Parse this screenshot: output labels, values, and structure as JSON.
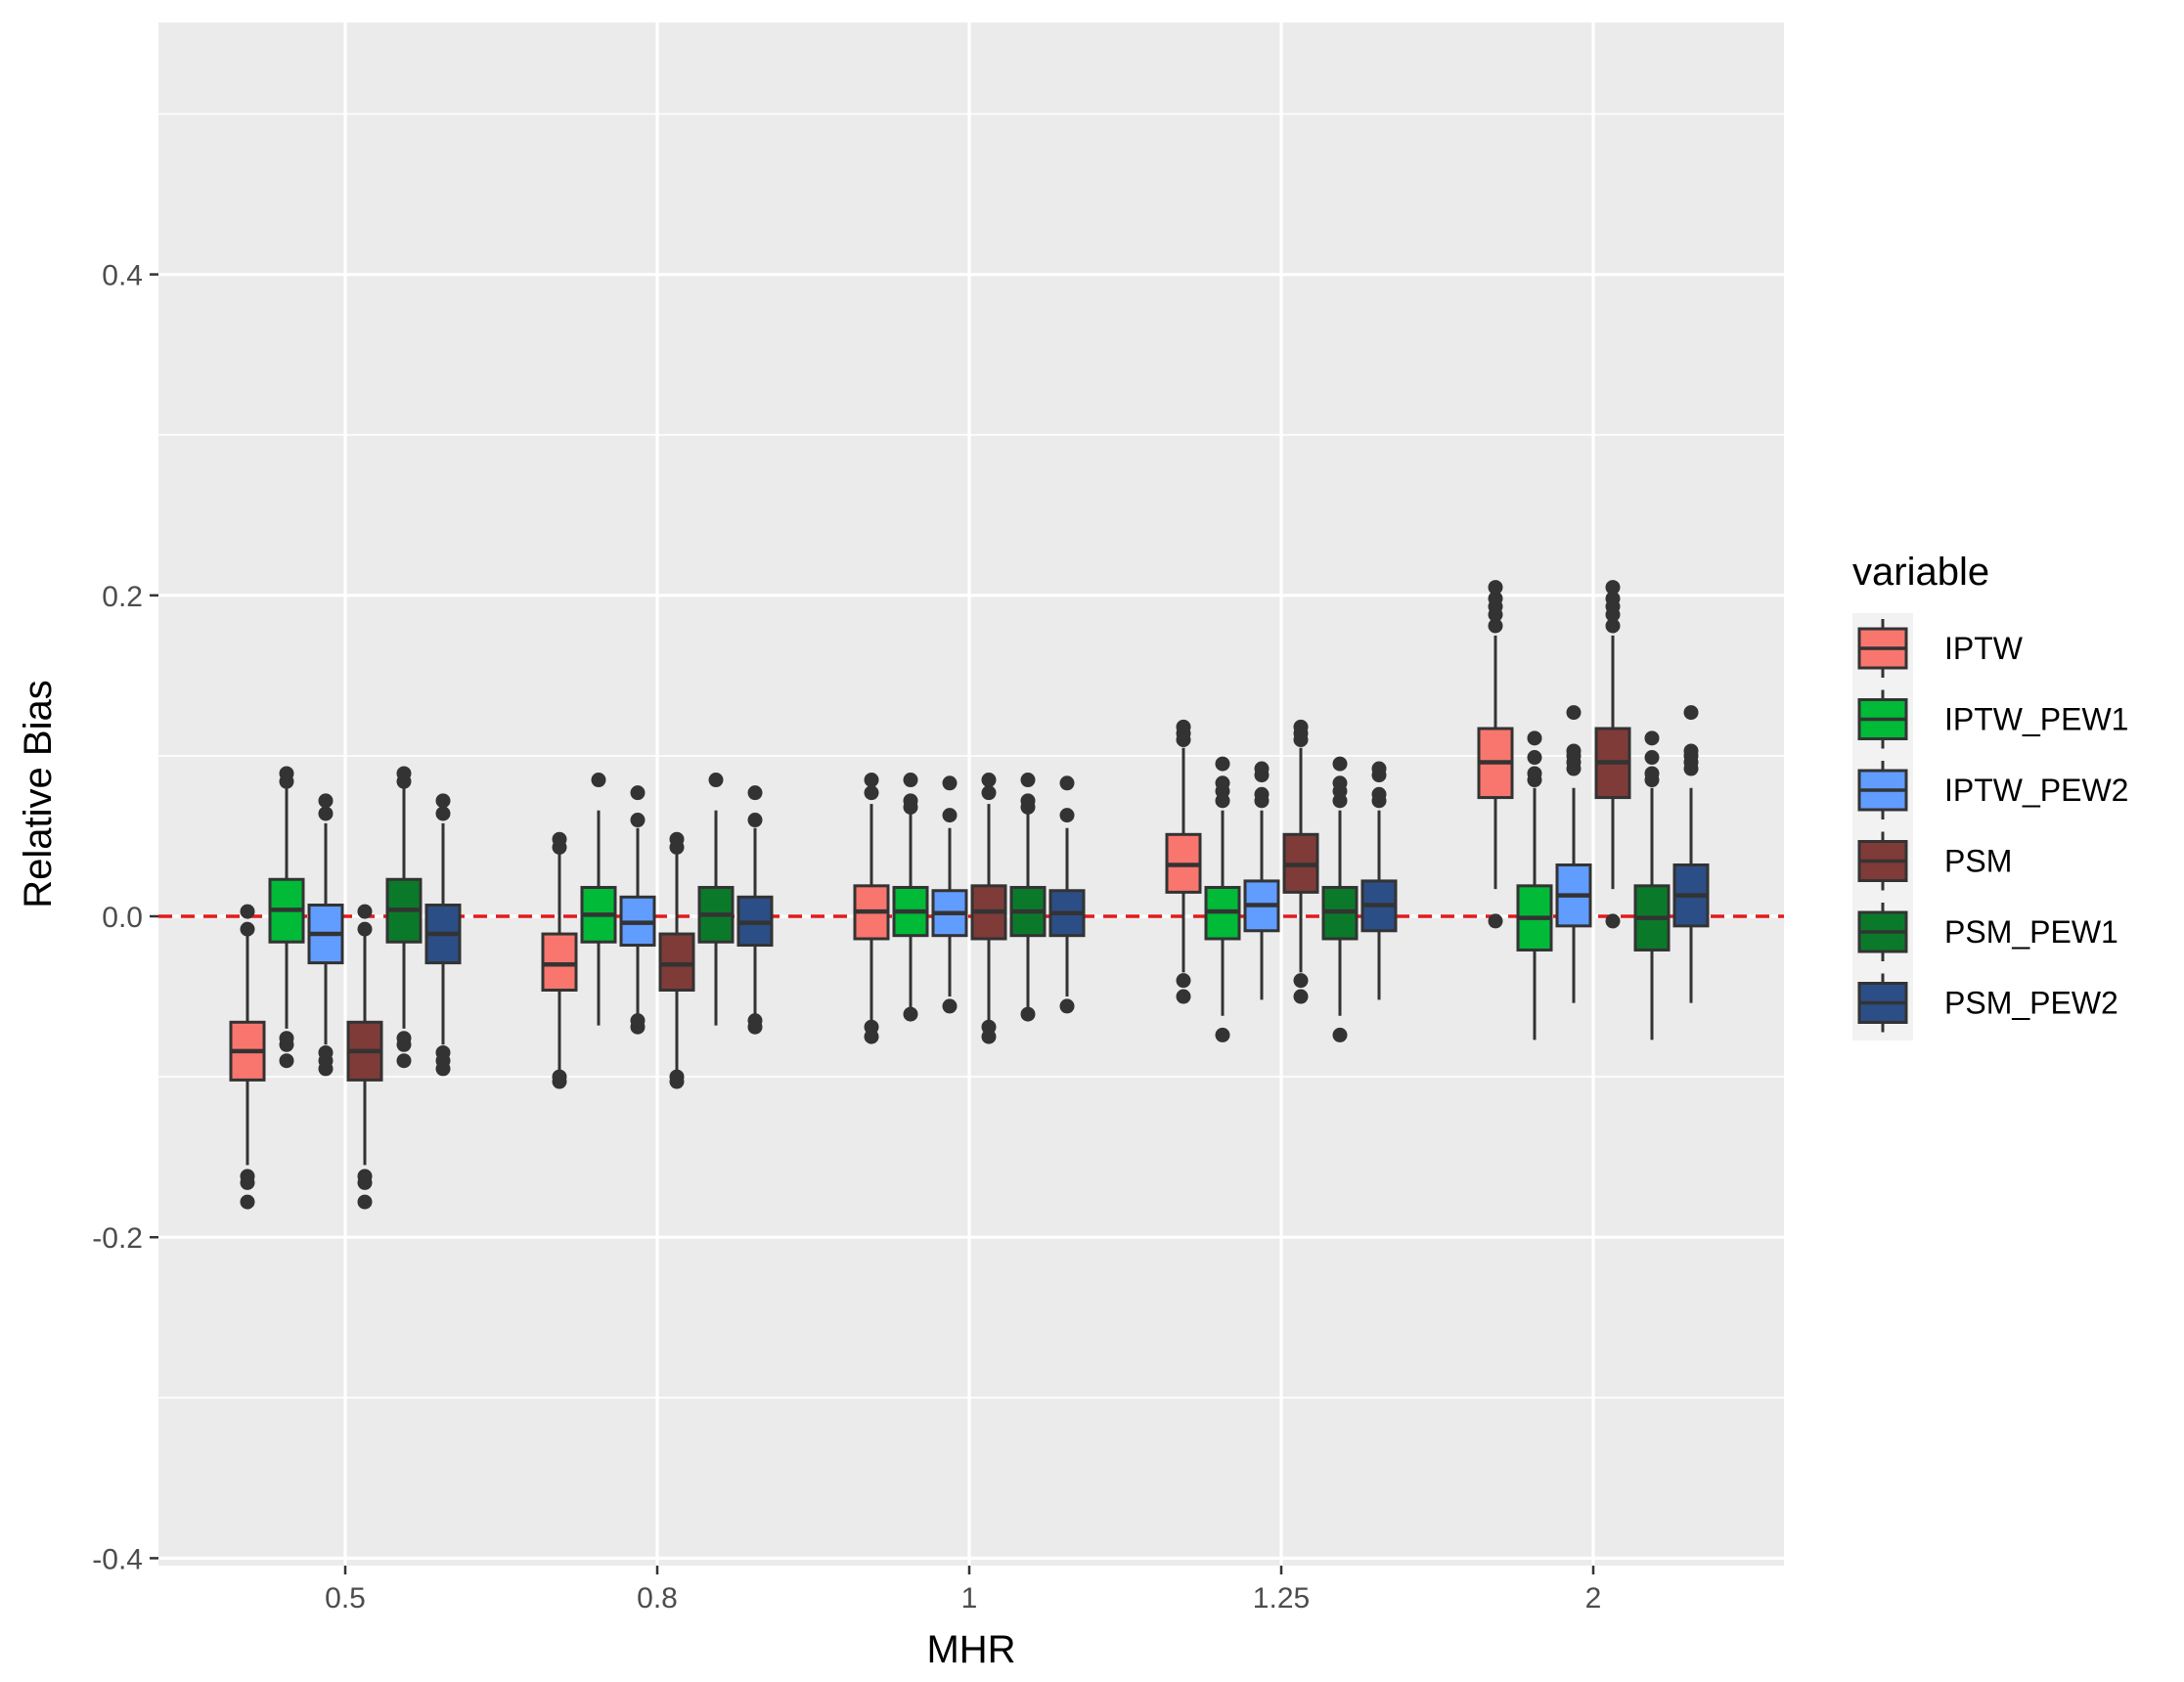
{
  "chart_data": {
    "type": "boxplot",
    "title": "",
    "xlabel": "MHR",
    "ylabel": "Relative Bias",
    "categories": [
      "0.5",
      "0.8",
      "1",
      "1.25",
      "2"
    ],
    "ylim": [
      -0.4,
      0.5
    ],
    "yticks": [
      "0.4",
      "0.2",
      "0.0",
      "-0.2",
      "-0.4"
    ],
    "ytick_values": [
      0.4,
      0.2,
      0.0,
      -0.2,
      -0.4
    ],
    "grid": true,
    "reference_line": {
      "y": 0.0,
      "color": "#e31a1c",
      "style": "dashed"
    },
    "legend": {
      "title": "variable",
      "position": "right"
    },
    "series": [
      {
        "name": "IPTW",
        "color": "#F8766D",
        "boxes": [
          {
            "category": "0.5",
            "lower_whisker": -0.155,
            "q1": -0.102,
            "median": -0.084,
            "q3": -0.066,
            "upper_whisker": -0.012,
            "outliers": [
              -0.178,
              -0.166,
              -0.162,
              -0.008,
              0.003
            ]
          },
          {
            "category": "0.8",
            "lower_whisker": -0.097,
            "q1": -0.046,
            "median": -0.03,
            "q3": -0.011,
            "upper_whisker": 0.04,
            "outliers": [
              -0.103,
              -0.1,
              0.043,
              0.048
            ]
          },
          {
            "category": "1",
            "lower_whisker": -0.065,
            "q1": -0.014,
            "median": 0.003,
            "q3": 0.019,
            "upper_whisker": 0.07,
            "outliers": [
              -0.075,
              -0.069,
              0.077,
              0.085
            ]
          },
          {
            "category": "1.25",
            "lower_whisker": -0.035,
            "q1": 0.015,
            "median": 0.032,
            "q3": 0.051,
            "upper_whisker": 0.105,
            "outliers": [
              -0.05,
              -0.04,
              0.11,
              0.114,
              0.118
            ]
          },
          {
            "category": "2",
            "lower_whisker": 0.017,
            "q1": 0.074,
            "median": 0.096,
            "q3": 0.117,
            "upper_whisker": 0.175,
            "outliers": [
              -0.003,
              0.181,
              0.188,
              0.193,
              0.198,
              0.205
            ]
          }
        ]
      },
      {
        "name": "IPTW_PEW1",
        "color": "#00BA38",
        "boxes": [
          {
            "category": "0.5",
            "lower_whisker": -0.07,
            "q1": -0.016,
            "median": 0.004,
            "q3": 0.023,
            "upper_whisker": 0.08,
            "outliers": [
              -0.09,
              -0.08,
              -0.076,
              0.084,
              0.089
            ]
          },
          {
            "category": "0.8",
            "lower_whisker": -0.068,
            "q1": -0.016,
            "median": 0.001,
            "q3": 0.018,
            "upper_whisker": 0.066,
            "outliers": [
              0.085
            ]
          },
          {
            "category": "1",
            "lower_whisker": -0.06,
            "q1": -0.012,
            "median": 0.003,
            "q3": 0.018,
            "upper_whisker": 0.066,
            "outliers": [
              -0.061,
              0.068,
              0.072,
              0.085
            ]
          },
          {
            "category": "1.25",
            "lower_whisker": -0.062,
            "q1": -0.014,
            "median": 0.003,
            "q3": 0.018,
            "upper_whisker": 0.066,
            "outliers": [
              -0.074,
              0.072,
              0.078,
              0.083,
              0.095
            ]
          },
          {
            "category": "2",
            "lower_whisker": -0.077,
            "q1": -0.021,
            "median": -0.001,
            "q3": 0.019,
            "upper_whisker": 0.08,
            "outliers": [
              0.085,
              0.089,
              0.099,
              0.111
            ]
          }
        ]
      },
      {
        "name": "IPTW_PEW2",
        "color": "#619CFF",
        "boxes": [
          {
            "category": "0.5",
            "lower_whisker": -0.08,
            "q1": -0.029,
            "median": -0.011,
            "q3": 0.007,
            "upper_whisker": 0.058,
            "outliers": [
              -0.095,
              -0.09,
              -0.085,
              0.064,
              0.072
            ]
          },
          {
            "category": "0.8",
            "lower_whisker": -0.062,
            "q1": -0.018,
            "median": -0.004,
            "q3": 0.012,
            "upper_whisker": 0.055,
            "outliers": [
              -0.069,
              -0.065,
              0.06,
              0.077
            ]
          },
          {
            "category": "1",
            "lower_whisker": -0.05,
            "q1": -0.012,
            "median": 0.002,
            "q3": 0.016,
            "upper_whisker": 0.055,
            "outliers": [
              -0.056,
              0.063,
              0.083
            ]
          },
          {
            "category": "1.25",
            "lower_whisker": -0.052,
            "q1": -0.009,
            "median": 0.007,
            "q3": 0.022,
            "upper_whisker": 0.066,
            "outliers": [
              0.072,
              0.076,
              0.088,
              0.092
            ]
          },
          {
            "category": "2",
            "lower_whisker": -0.054,
            "q1": -0.006,
            "median": 0.013,
            "q3": 0.032,
            "upper_whisker": 0.08,
            "outliers": [
              0.092,
              0.096,
              0.1,
              0.103,
              0.127
            ]
          }
        ]
      },
      {
        "name": "PSM",
        "color": "#7F3B38",
        "boxes": [
          {
            "category": "0.5",
            "lower_whisker": -0.155,
            "q1": -0.102,
            "median": -0.084,
            "q3": -0.066,
            "upper_whisker": -0.012,
            "outliers": [
              -0.178,
              -0.166,
              -0.162,
              -0.008,
              0.003
            ]
          },
          {
            "category": "0.8",
            "lower_whisker": -0.097,
            "q1": -0.046,
            "median": -0.03,
            "q3": -0.011,
            "upper_whisker": 0.04,
            "outliers": [
              -0.103,
              -0.1,
              0.043,
              0.048
            ]
          },
          {
            "category": "1",
            "lower_whisker": -0.065,
            "q1": -0.014,
            "median": 0.003,
            "q3": 0.019,
            "upper_whisker": 0.07,
            "outliers": [
              -0.075,
              -0.069,
              0.077,
              0.085
            ]
          },
          {
            "category": "1.25",
            "lower_whisker": -0.035,
            "q1": 0.015,
            "median": 0.032,
            "q3": 0.051,
            "upper_whisker": 0.105,
            "outliers": [
              -0.05,
              -0.04,
              0.11,
              0.114,
              0.118
            ]
          },
          {
            "category": "2",
            "lower_whisker": 0.017,
            "q1": 0.074,
            "median": 0.096,
            "q3": 0.117,
            "upper_whisker": 0.175,
            "outliers": [
              -0.003,
              0.181,
              0.188,
              0.193,
              0.198,
              0.205
            ]
          }
        ]
      },
      {
        "name": "PSM_PEW1",
        "color": "#0A7A2A",
        "boxes": [
          {
            "category": "0.5",
            "lower_whisker": -0.07,
            "q1": -0.016,
            "median": 0.004,
            "q3": 0.023,
            "upper_whisker": 0.08,
            "outliers": [
              -0.09,
              -0.08,
              -0.076,
              0.084,
              0.089
            ]
          },
          {
            "category": "0.8",
            "lower_whisker": -0.068,
            "q1": -0.016,
            "median": 0.001,
            "q3": 0.018,
            "upper_whisker": 0.066,
            "outliers": [
              0.085
            ]
          },
          {
            "category": "1",
            "lower_whisker": -0.06,
            "q1": -0.012,
            "median": 0.003,
            "q3": 0.018,
            "upper_whisker": 0.066,
            "outliers": [
              -0.061,
              0.068,
              0.072,
              0.085
            ]
          },
          {
            "category": "1.25",
            "lower_whisker": -0.062,
            "q1": -0.014,
            "median": 0.003,
            "q3": 0.018,
            "upper_whisker": 0.066,
            "outliers": [
              -0.074,
              0.072,
              0.078,
              0.083,
              0.095
            ]
          },
          {
            "category": "2",
            "lower_whisker": -0.077,
            "q1": -0.021,
            "median": -0.001,
            "q3": 0.019,
            "upper_whisker": 0.08,
            "outliers": [
              0.085,
              0.089,
              0.099,
              0.111
            ]
          }
        ]
      },
      {
        "name": "PSM_PEW2",
        "color": "#2C4E86",
        "boxes": [
          {
            "category": "0.5",
            "lower_whisker": -0.08,
            "q1": -0.029,
            "median": -0.011,
            "q3": 0.007,
            "upper_whisker": 0.058,
            "outliers": [
              -0.095,
              -0.09,
              -0.085,
              0.064,
              0.072
            ]
          },
          {
            "category": "0.8",
            "lower_whisker": -0.062,
            "q1": -0.018,
            "median": -0.004,
            "q3": 0.012,
            "upper_whisker": 0.055,
            "outliers": [
              -0.069,
              -0.065,
              0.06,
              0.077
            ]
          },
          {
            "category": "1",
            "lower_whisker": -0.05,
            "q1": -0.012,
            "median": 0.002,
            "q3": 0.016,
            "upper_whisker": 0.055,
            "outliers": [
              -0.056,
              0.063,
              0.083
            ]
          },
          {
            "category": "1.25",
            "lower_whisker": -0.052,
            "q1": -0.009,
            "median": 0.007,
            "q3": 0.022,
            "upper_whisker": 0.066,
            "outliers": [
              0.072,
              0.076,
              0.088,
              0.092
            ]
          },
          {
            "category": "2",
            "lower_whisker": -0.054,
            "q1": -0.006,
            "median": 0.013,
            "q3": 0.032,
            "upper_whisker": 0.08,
            "outliers": [
              0.092,
              0.096,
              0.1,
              0.103,
              0.127
            ]
          }
        ]
      }
    ]
  }
}
